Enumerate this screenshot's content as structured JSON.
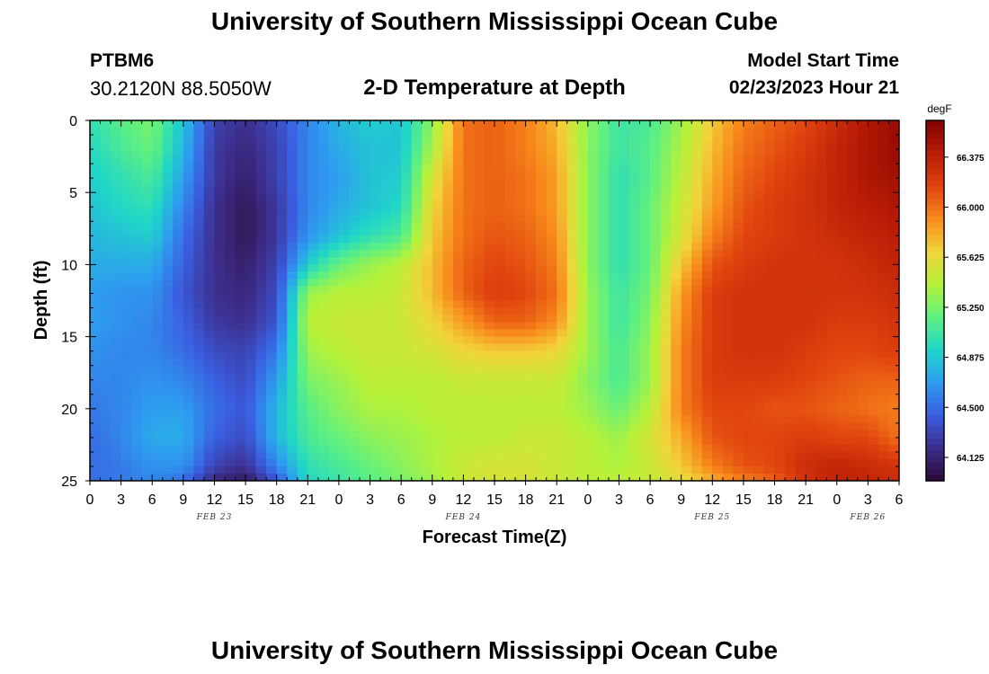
{
  "header": {
    "title": "University of Southern Mississippi Ocean Cube",
    "station": "PTBM6",
    "coords": "30.2120N  88.5050W",
    "subtitle": "2-D Temperature at Depth",
    "model_start_label": "Model Start Time",
    "model_start_value": "02/23/2023 Hour 21"
  },
  "footer": {
    "title": "University of Southern Mississippi Ocean Cube"
  },
  "chart_data": {
    "type": "heatmap",
    "xlabel": "Forecast Time(Z)",
    "ylabel": "Depth (ft)",
    "x_hours_range": [
      0,
      78
    ],
    "ylim": [
      0,
      25
    ],
    "y_ticks": [
      "0",
      "5",
      "10",
      "15",
      "20",
      "25"
    ],
    "x_ticks": [
      "0",
      "3",
      "6",
      "9",
      "12",
      "15",
      "18",
      "21",
      "0",
      "3",
      "6",
      "9",
      "12",
      "15",
      "18",
      "21",
      "0",
      "3",
      "6",
      "9",
      "12",
      "15",
      "18",
      "21",
      "0",
      "3",
      "6"
    ],
    "date_labels": [
      {
        "label": "FEB 23",
        "hour": 12
      },
      {
        "label": "FEB 24",
        "hour": 36
      },
      {
        "label": "FEB 25",
        "hour": 60
      },
      {
        "label": "FEB 26",
        "hour": 75
      }
    ],
    "colorbar": {
      "unit": "degF",
      "ticks": [
        "64.125",
        "64.500",
        "64.875",
        "65.250",
        "65.625",
        "66.000",
        "66.375"
      ],
      "min": 63.95,
      "max": 66.65,
      "colors": [
        "#2a0a35",
        "#3d2e8c",
        "#3a5ee0",
        "#2e9cf0",
        "#1fd6c8",
        "#5ff080",
        "#b6f23a",
        "#f2d43a",
        "#f88a1c",
        "#e0420e",
        "#b81c06",
        "#800000"
      ]
    },
    "depths": [
      0,
      2,
      4,
      6,
      8,
      10,
      12,
      14,
      16,
      18,
      20,
      22,
      24,
      25
    ],
    "hours": [
      0,
      3,
      6,
      9,
      12,
      15,
      18,
      21,
      24,
      27,
      30,
      33,
      36,
      39,
      42,
      45,
      48,
      51,
      54,
      57,
      60,
      63,
      66,
      69,
      72,
      75,
      78
    ],
    "temperature": [
      [
        65.0,
        65.15,
        65.25,
        64.85,
        64.3,
        64.2,
        64.35,
        64.6,
        64.8,
        64.9,
        64.85,
        65.3,
        66.0,
        66.05,
        65.95,
        65.75,
        65.3,
        65.05,
        65.1,
        65.35,
        65.7,
        65.95,
        66.05,
        66.15,
        66.3,
        66.45,
        66.55
      ],
      [
        64.95,
        65.1,
        65.2,
        64.8,
        64.25,
        64.15,
        64.3,
        64.6,
        64.75,
        64.85,
        64.85,
        65.4,
        66.0,
        66.05,
        65.95,
        65.8,
        65.3,
        65.05,
        65.15,
        65.4,
        65.75,
        66.0,
        66.1,
        66.2,
        66.35,
        66.45,
        66.55
      ],
      [
        64.9,
        65.0,
        65.1,
        64.7,
        64.25,
        64.1,
        64.3,
        64.6,
        64.7,
        64.85,
        64.9,
        65.55,
        66.0,
        66.05,
        66.0,
        65.85,
        65.3,
        65.0,
        65.15,
        65.45,
        65.8,
        66.05,
        66.15,
        66.25,
        66.35,
        66.45,
        66.5
      ],
      [
        64.85,
        64.95,
        65.0,
        64.6,
        64.2,
        64.05,
        64.25,
        64.6,
        64.75,
        64.85,
        64.95,
        65.65,
        66.0,
        66.05,
        66.0,
        65.85,
        65.3,
        65.0,
        65.2,
        65.5,
        65.85,
        66.1,
        66.2,
        66.25,
        66.35,
        66.4,
        66.45
      ],
      [
        64.8,
        64.85,
        64.9,
        64.5,
        64.2,
        64.05,
        64.25,
        64.65,
        64.85,
        65.0,
        65.1,
        65.7,
        66.0,
        66.1,
        66.05,
        65.9,
        65.3,
        65.0,
        65.2,
        65.55,
        65.95,
        66.15,
        66.2,
        66.25,
        66.3,
        66.35,
        66.4
      ],
      [
        64.75,
        64.75,
        64.75,
        64.45,
        64.2,
        64.1,
        64.3,
        64.9,
        65.2,
        65.35,
        65.45,
        65.75,
        66.05,
        66.15,
        66.1,
        65.95,
        65.3,
        65.0,
        65.2,
        65.7,
        66.1,
        66.2,
        66.25,
        66.25,
        66.25,
        66.3,
        66.35
      ],
      [
        64.7,
        64.65,
        64.65,
        64.4,
        64.2,
        64.15,
        64.35,
        65.35,
        65.45,
        65.45,
        65.5,
        65.75,
        66.05,
        66.2,
        66.15,
        66.0,
        65.35,
        65.05,
        65.25,
        65.85,
        66.2,
        66.25,
        66.25,
        66.25,
        66.25,
        66.25,
        66.3
      ],
      [
        64.7,
        64.65,
        64.6,
        64.45,
        64.25,
        64.2,
        64.4,
        65.45,
        65.5,
        65.5,
        65.5,
        65.65,
        65.85,
        66.05,
        66.05,
        65.9,
        65.35,
        65.05,
        65.3,
        65.9,
        66.2,
        66.25,
        66.25,
        66.25,
        66.2,
        66.2,
        66.25
      ],
      [
        64.65,
        64.6,
        64.6,
        64.5,
        64.35,
        64.3,
        64.55,
        65.35,
        65.45,
        65.5,
        65.5,
        65.55,
        65.65,
        65.7,
        65.7,
        65.65,
        65.35,
        65.1,
        65.35,
        65.95,
        66.2,
        66.25,
        66.25,
        66.2,
        66.15,
        66.15,
        66.2
      ],
      [
        64.6,
        64.6,
        64.65,
        64.6,
        64.45,
        64.35,
        64.7,
        65.25,
        65.35,
        65.45,
        65.45,
        65.45,
        65.5,
        65.5,
        65.5,
        65.5,
        65.3,
        65.1,
        65.35,
        65.95,
        66.2,
        66.2,
        66.2,
        66.15,
        66.1,
        66.05,
        66.05
      ],
      [
        64.55,
        64.6,
        64.7,
        64.7,
        64.5,
        64.4,
        64.8,
        65.15,
        65.3,
        65.4,
        65.4,
        65.45,
        65.45,
        65.45,
        65.45,
        65.45,
        65.35,
        65.2,
        65.45,
        65.95,
        66.15,
        66.15,
        66.1,
        66.1,
        66.05,
        66.0,
        65.95
      ],
      [
        64.5,
        64.6,
        64.75,
        64.75,
        64.45,
        64.35,
        64.8,
        65.1,
        65.2,
        65.3,
        65.35,
        65.4,
        65.45,
        65.45,
        65.5,
        65.5,
        65.45,
        65.35,
        65.55,
        65.8,
        66.1,
        66.15,
        66.15,
        66.2,
        66.15,
        66.15,
        66.0
      ],
      [
        64.5,
        64.55,
        64.65,
        64.65,
        64.3,
        64.2,
        64.6,
        65.0,
        65.1,
        65.2,
        65.3,
        65.4,
        65.5,
        65.55,
        65.55,
        65.5,
        65.45,
        65.4,
        65.5,
        65.7,
        65.95,
        66.1,
        66.15,
        66.3,
        66.35,
        66.3,
        66.25
      ],
      [
        64.5,
        64.55,
        64.6,
        64.5,
        64.15,
        64.05,
        64.4,
        64.95,
        65.05,
        65.15,
        65.25,
        65.35,
        65.5,
        65.55,
        65.55,
        65.5,
        65.45,
        65.45,
        65.5,
        65.6,
        65.8,
        65.95,
        66.05,
        66.25,
        66.35,
        66.35,
        66.3
      ]
    ]
  }
}
